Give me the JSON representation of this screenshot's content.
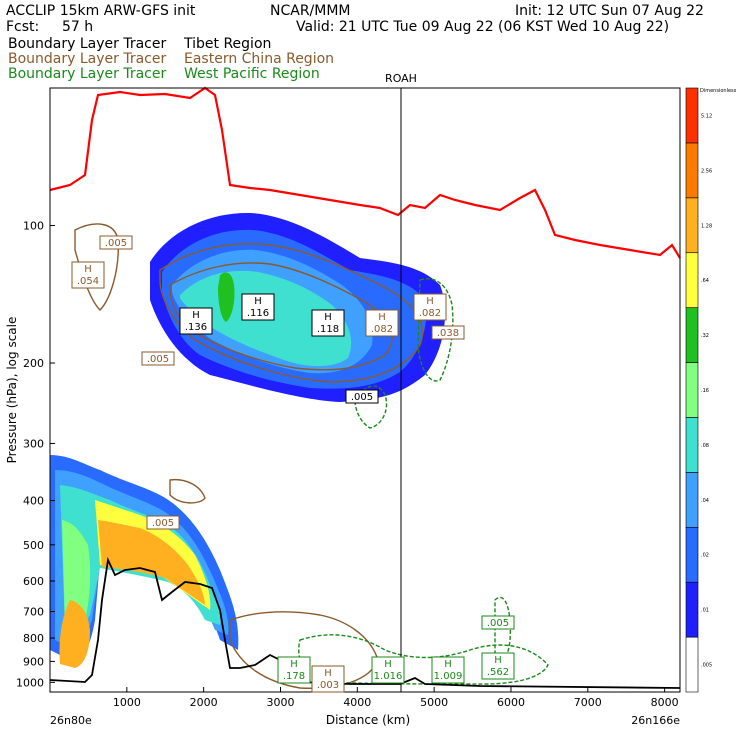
{
  "header": {
    "model": "ACCLIP 15km ARW-GFS init",
    "org": "NCAR/MMM",
    "init": "Init: 12 UTC Sun 07 Aug 22",
    "fcst_label": "Fcst:",
    "fcst_value": "57 h",
    "valid": "Valid: 21 UTC Tue 09 Aug 22 (06 KST Wed 10 Aug 22)",
    "tracers": [
      {
        "name": "Boundary Layer Tracer",
        "region": "Tibet Region",
        "color": "#000000"
      },
      {
        "name": "Boundary Layer Tracer",
        "region": "Eastern China Region",
        "color": "#8B5A2B"
      },
      {
        "name": "Boundary Layer Tracer",
        "region": "West Pacific Region",
        "color": "#1a8a1a"
      }
    ]
  },
  "chart_data": {
    "type": "cross-section",
    "xlabel": "Distance (km)",
    "ylabel": "Pressure (hPa), log scale",
    "x_ticks": [
      "1000",
      "2000",
      "3000",
      "4000",
      "5000",
      "6000",
      "7000",
      "8000"
    ],
    "x_end_labels": {
      "left": "26n80e",
      "right": "26n166e"
    },
    "y_ticks": [
      "100",
      "200",
      "300",
      "400",
      "500",
      "600",
      "700",
      "800",
      "900",
      "1000"
    ],
    "xlim": [
      0,
      8200
    ],
    "ylim": [
      1050,
      50
    ],
    "y_scale": "log",
    "station_marker": {
      "label": "ROAH",
      "x_km": 4600
    },
    "colorbar": {
      "levels": [
        ".005",
        ".01",
        ".02",
        ".04",
        ".08",
        ".16",
        ".32",
        ".64",
        "1.28",
        "2.56",
        "5.12"
      ],
      "top_label": "Dimensionless",
      "colors": [
        "#ffffff",
        "#1f1fff",
        "#2a6bff",
        "#3fa0ff",
        "#40e0d0",
        "#80ff80",
        "#20c020",
        "#ffff40",
        "#ffb020",
        "#ff7a00",
        "#ff3000"
      ]
    },
    "max_labels": [
      {
        "text": "H\n.054",
        "color": "#8B5A2B"
      },
      {
        "text": ".005",
        "color": "#8B5A2B"
      },
      {
        "text": ".005",
        "color": "#8B5A2B"
      },
      {
        "text": ".005",
        "color": "#8B5A2B"
      },
      {
        "text": "H\n.136",
        "color": "#000000"
      },
      {
        "text": "H\n.116",
        "color": "#000000"
      },
      {
        "text": "H\n.118",
        "color": "#000000"
      },
      {
        "text": "H\n.082",
        "color": "#8B5A2B"
      },
      {
        "text": "H\n.082",
        "color": "#8B5A2B"
      },
      {
        "text": ".038",
        "color": "#8B5A2B"
      },
      {
        "text": ".005",
        "color": "#000000"
      },
      {
        "text": ".005",
        "color": "#1a8a1a"
      },
      {
        "text": "H\n.178",
        "color": "#1a8a1a"
      },
      {
        "text": "H\n.003",
        "color": "#8B5A2B"
      },
      {
        "text": "H\n1.016",
        "color": "#1a8a1a"
      },
      {
        "text": "H\n1.009",
        "color": "#1a8a1a"
      },
      {
        "text": "H\n.562",
        "color": "#1a8a1a"
      },
      {
        "text": ".005",
        "color": "#1a8a1a"
      }
    ]
  }
}
